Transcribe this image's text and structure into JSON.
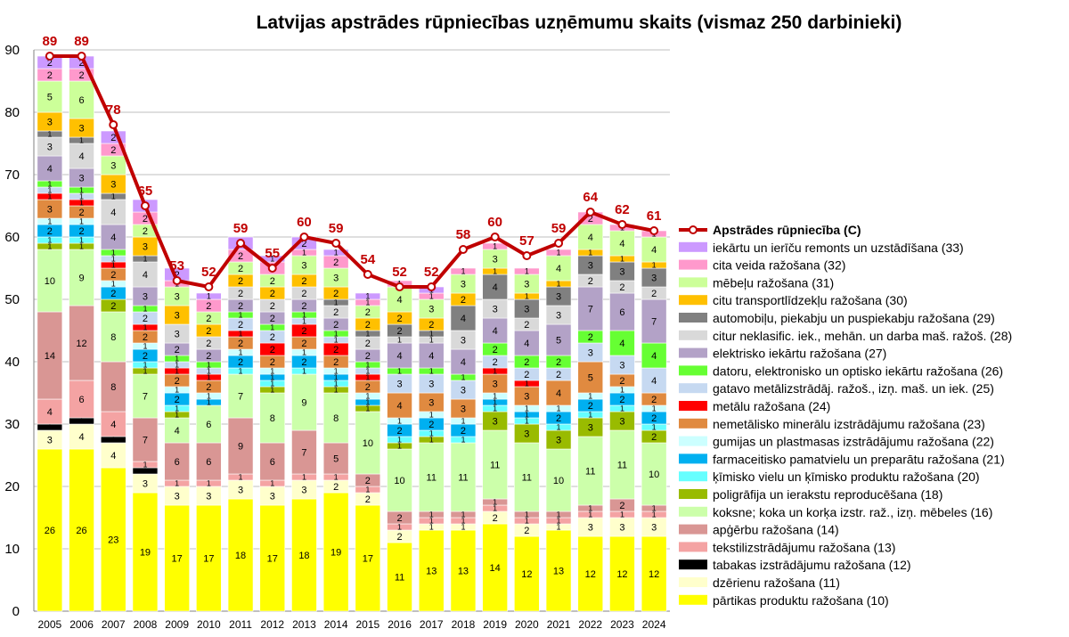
{
  "chart_data": {
    "type": "bar",
    "stacked": true,
    "title": "Latvijas apstrādes rūpniecības uzņēmumu skaits (vismaz 250 darbinieki)",
    "xlabel": "",
    "ylabel": "",
    "ylim": [
      0,
      90
    ],
    "yticks": [
      "0",
      "10",
      "20",
      "30",
      "40",
      "50",
      "60",
      "70",
      "80",
      "90"
    ],
    "grid": true,
    "legend_position": "right",
    "categories": [
      "2005",
      "2006",
      "2007",
      "2008",
      "2009",
      "2010",
      "2011",
      "2012",
      "2013",
      "2014",
      "2015",
      "2016",
      "2017",
      "2018",
      "2019",
      "2020",
      "2021",
      "2022",
      "2023",
      "2024"
    ],
    "series": [
      {
        "name": "pārtikas produktu ražošana (10)",
        "color": "#ffff00",
        "values": [
          26,
          26,
          23,
          19,
          17,
          17,
          18,
          17,
          18,
          19,
          17,
          11,
          13,
          13,
          14,
          12,
          13,
          12,
          12,
          12
        ]
      },
      {
        "name": "dzērienu ražošana (11)",
        "color": "#ffffcc",
        "values": [
          3,
          4,
          4,
          3,
          3,
          3,
          3,
          3,
          3,
          2,
          2,
          2,
          1,
          1,
          2,
          2,
          1,
          3,
          3,
          3
        ]
      },
      {
        "name": "tabakas izstrādājumu ražošana (12)",
        "color": "#000000",
        "values": [
          1,
          1,
          1,
          1,
          0,
          0,
          0,
          0,
          0,
          0,
          0,
          0,
          0,
          0,
          0,
          0,
          0,
          0,
          0,
          0
        ]
      },
      {
        "name": "tekstilizstrādājumu ražošana (13)",
        "color": "#f4a3a3",
        "values": [
          4,
          6,
          4,
          1,
          1,
          1,
          1,
          1,
          1,
          1,
          1,
          1,
          1,
          1,
          1,
          1,
          1,
          1,
          1,
          1
        ]
      },
      {
        "name": "apģērbu ražošana (14)",
        "color": "#d99694",
        "values": [
          14,
          12,
          8,
          7,
          6,
          6,
          9,
          6,
          7,
          5,
          2,
          2,
          1,
          1,
          1,
          1,
          1,
          1,
          2,
          1
        ]
      },
      {
        "name": "koksne; koka un korķa izstr. raž., izņ. mēbeles (16)",
        "color": "#ccffaa",
        "values": [
          10,
          9,
          8,
          7,
          4,
          6,
          7,
          8,
          9,
          8,
          10,
          10,
          11,
          11,
          11,
          11,
          10,
          11,
          11,
          10
        ]
      },
      {
        "name": "poligrāfija un ierakstu reproducēšana (18)",
        "color": "#99bb00",
        "values": [
          1,
          1,
          2,
          1,
          1,
          0,
          0,
          1,
          0,
          1,
          1,
          1,
          1,
          0,
          3,
          3,
          3,
          3,
          3,
          2
        ]
      },
      {
        "name": "ķīmisko vielu un ķīmisko produktu ražošana (20)",
        "color": "#66ffff",
        "values": [
          1,
          1,
          0,
          1,
          1,
          0,
          1,
          1,
          1,
          1,
          0,
          1,
          1,
          1,
          1,
          1,
          1,
          1,
          1,
          1
        ]
      },
      {
        "name": "farmaceitisko pamatvielu un preparātu ražošana (21)",
        "color": "#00b0f0",
        "values": [
          2,
          2,
          2,
          2,
          2,
          1,
          2,
          1,
          2,
          1,
          1,
          2,
          2,
          2,
          1,
          1,
          2,
          2,
          2,
          2
        ]
      },
      {
        "name": "gumijas un plastmasas izstrādājumu ražošana (22)",
        "color": "#ccffff",
        "values": [
          1,
          1,
          1,
          1,
          1,
          1,
          1,
          1,
          1,
          1,
          1,
          1,
          1,
          1,
          1,
          1,
          1,
          1,
          1,
          1
        ]
      },
      {
        "name": "nemetālisko minerālu izstrādājumu ražošana (23)",
        "color": "#e08a40",
        "values": [
          3,
          2,
          2,
          2,
          2,
          2,
          2,
          2,
          2,
          2,
          2,
          4,
          3,
          3,
          3,
          3,
          4,
          5,
          2,
          2
        ]
      },
      {
        "name": "metālu ražošana (24)",
        "color": "#ff0000",
        "values": [
          1,
          1,
          1,
          1,
          1,
          1,
          1,
          2,
          2,
          2,
          1,
          0,
          0,
          0,
          1,
          1,
          0,
          0,
          0,
          0
        ]
      },
      {
        "name": "gatavo metālizstrādāj. ražoš., izņ. maš. un iek. (25)",
        "color": "#c6d9f1",
        "values": [
          1,
          1,
          1,
          2,
          1,
          1,
          2,
          2,
          1,
          1,
          1,
          3,
          3,
          3,
          2,
          2,
          2,
          3,
          3,
          4
        ]
      },
      {
        "name": "datoru, elektronisko un optisko iekārtu ražošana (26)",
        "color": "#66ff33",
        "values": [
          1,
          1,
          1,
          1,
          1,
          1,
          1,
          1,
          1,
          1,
          1,
          1,
          1,
          1,
          2,
          2,
          2,
          2,
          4,
          4
        ]
      },
      {
        "name": "elektrisko iekārtu ražošana (27)",
        "color": "#b3a2c7",
        "values": [
          4,
          3,
          4,
          3,
          2,
          2,
          2,
          2,
          2,
          2,
          2,
          4,
          4,
          4,
          4,
          4,
          5,
          7,
          6,
          7
        ]
      },
      {
        "name": "citur neklasific. iek., mehān. un darba maš. ražoš. (28)",
        "color": "#d9d9d9",
        "values": [
          3,
          4,
          4,
          4,
          3,
          2,
          2,
          2,
          2,
          2,
          2,
          1,
          1,
          3,
          3,
          2,
          3,
          2,
          2,
          2
        ]
      },
      {
        "name": "automobiļu, piekabju un puspiekabju ražošana (29)",
        "color": "#808080",
        "values": [
          1,
          1,
          1,
          1,
          0,
          0,
          0,
          0,
          0,
          1,
          1,
          2,
          1,
          4,
          4,
          3,
          3,
          3,
          3,
          3
        ]
      },
      {
        "name": "citu transportlīdzekļu ražošana (30)",
        "color": "#ffc000",
        "values": [
          3,
          3,
          3,
          3,
          3,
          2,
          2,
          2,
          2,
          2,
          2,
          2,
          2,
          2,
          1,
          1,
          1,
          1,
          1,
          1
        ]
      },
      {
        "name": "mēbeļu ražošana (31)",
        "color": "#ccff99",
        "values": [
          5,
          6,
          3,
          2,
          3,
          2,
          2,
          2,
          3,
          3,
          2,
          4,
          3,
          3,
          3,
          3,
          4,
          4,
          4,
          4
        ]
      },
      {
        "name": "cita veida ražošana (32)",
        "color": "#ff99cc",
        "values": [
          2,
          2,
          2,
          2,
          1,
          2,
          2,
          2,
          1,
          2,
          1,
          1,
          1,
          1,
          1,
          1,
          1,
          2,
          1,
          1
        ]
      },
      {
        "name": "iekārtu un ierīču remonts un uzstādīšana (33)",
        "color": "#cc99ff",
        "values": [
          2,
          2,
          2,
          2,
          2,
          1,
          2,
          1,
          2,
          1,
          1,
          0,
          1,
          0,
          0,
          0,
          0,
          0,
          0,
          0
        ]
      }
    ],
    "line_series": {
      "name": "Apstrādes rūpniecība (C)",
      "color": "#c00000",
      "values": [
        89,
        89,
        78,
        65,
        53,
        52,
        59,
        55,
        60,
        59,
        54,
        52,
        52,
        58,
        60,
        57,
        59,
        64,
        62,
        61
      ]
    }
  }
}
